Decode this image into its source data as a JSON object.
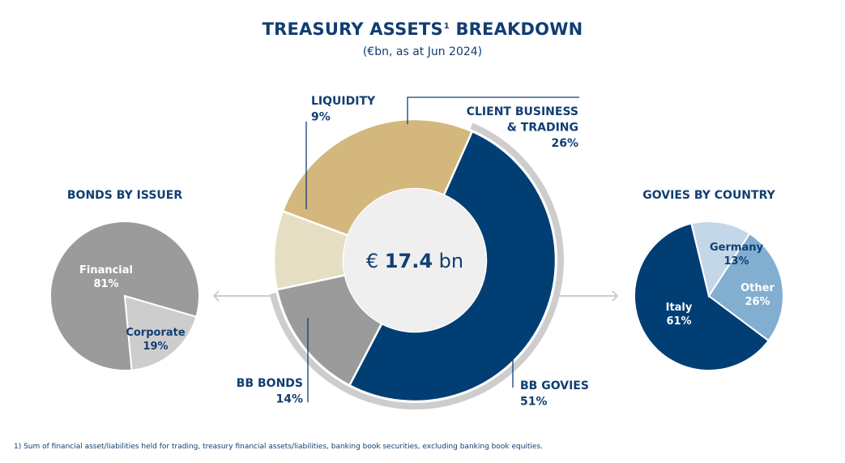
{
  "header": {
    "title": "TREASURY ASSETS",
    "title_sup": "1",
    "title_suffix": " BREAKDOWN",
    "subtitle": "(€bn, as at Jun 2024)"
  },
  "footnote": "1) Sum of financial asset/liabilities held for trading, treasury financial assets/liabilities, banking book securities, excluding banking book equities.",
  "colors": {
    "navy": "#003e74",
    "tan": "#d3b77c",
    "light_tan": "#e6dec2",
    "grey": "#9b9b9b",
    "light_grey": "#cdcdcd",
    "pale_blue": "#c4d7e9",
    "mid_blue": "#82aed0",
    "center": "#efefef",
    "text": "#113e72"
  },
  "chart_data": [
    {
      "type": "pie",
      "variant": "donut",
      "center_label": {
        "prefix": "€ ",
        "value": "17.4",
        "suffix": " bn"
      },
      "categories": [
        "BB GOVIES",
        "BB BONDS",
        "LIQUIDITY",
        "CLIENT BUSINESS & TRADING"
      ],
      "values": [
        51,
        14,
        9,
        26
      ],
      "labels": [
        {
          "lines": [
            "BB GOVIES",
            "51%"
          ]
        },
        {
          "lines": [
            "BB BONDS",
            "14%"
          ]
        },
        {
          "lines": [
            "LIQUIDITY",
            "9%"
          ]
        },
        {
          "lines": [
            "CLIENT BUSINESS",
            "& TRADING",
            "26%"
          ]
        }
      ],
      "colors": [
        "#003e74",
        "#9b9b9b",
        "#e6dec2",
        "#d3b77c"
      ]
    },
    {
      "type": "pie",
      "title": "BONDS BY ISSUER",
      "categories": [
        "Financial",
        "Corporate"
      ],
      "values": [
        81,
        19
      ],
      "value_labels": [
        "81%",
        "19%"
      ],
      "colors": [
        "#9b9b9b",
        "#cdcdcd"
      ],
      "label_colors": [
        "#ffffff",
        "#113e72"
      ]
    },
    {
      "type": "pie",
      "title": "GOVIES BY COUNTRY",
      "categories": [
        "Italy",
        "Germany",
        "Other"
      ],
      "values": [
        61,
        13,
        26
      ],
      "value_labels": [
        "61%",
        "13%",
        "26%"
      ],
      "colors": [
        "#003e74",
        "#c4d7e9",
        "#82aed0"
      ],
      "label_colors": [
        "#ffffff",
        "#113e72",
        "#ffffff"
      ]
    }
  ]
}
